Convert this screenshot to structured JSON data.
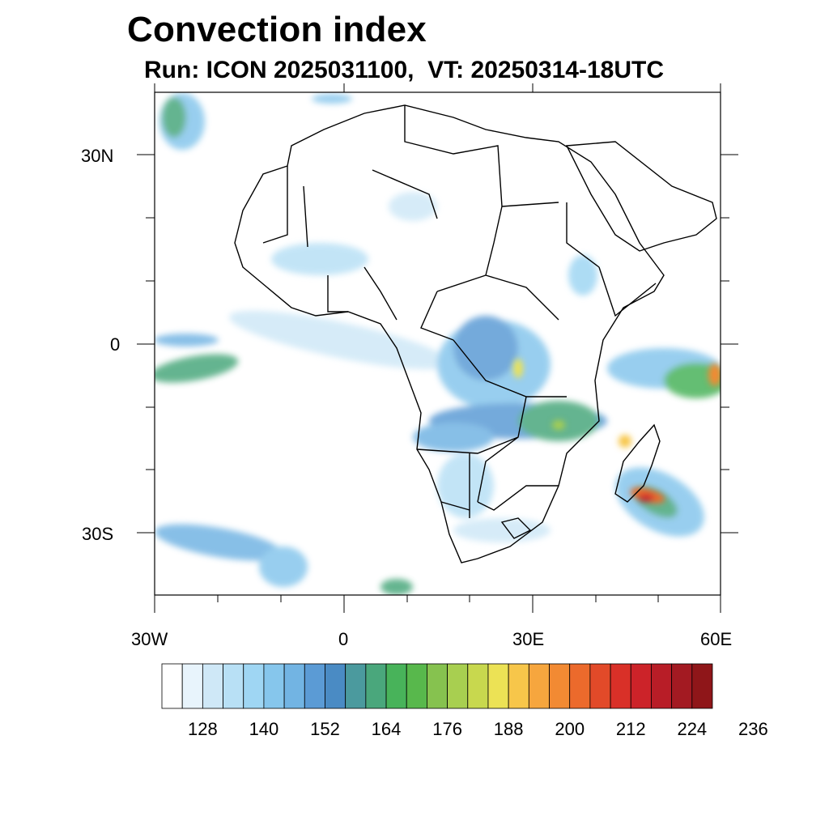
{
  "title": "Convection index",
  "subtitle": "Run: ICON 2025031100,  VT: 20250314-18UTC",
  "axes": {
    "lat_labels": [
      "30N",
      "0",
      "30S"
    ],
    "lon_labels": [
      "30W",
      "0",
      "30E",
      "60E"
    ],
    "lon_range": [
      -30,
      60
    ],
    "lat_range": [
      -40,
      40
    ]
  },
  "colorbar": {
    "tick_labels": [
      "128",
      "140",
      "152",
      "164",
      "176",
      "188",
      "200",
      "212",
      "224",
      "236"
    ],
    "colors": [
      "#ffffff",
      "#e8f4fc",
      "#cfe8f7",
      "#b8e0f5",
      "#9fd6f3",
      "#86c6ec",
      "#72b4e3",
      "#5b9bd5",
      "#4a8bc4",
      "#4b9a9e",
      "#4aa77c",
      "#48b35a",
      "#58b84c",
      "#86c24f",
      "#a8cf50",
      "#c8d84e",
      "#ece255",
      "#f7c64a",
      "#f6a63e",
      "#f28a33",
      "#ec6a2c",
      "#e24a29",
      "#d93028",
      "#cc2329",
      "#b81d27",
      "#a31a22",
      "#8f1619"
    ]
  }
}
